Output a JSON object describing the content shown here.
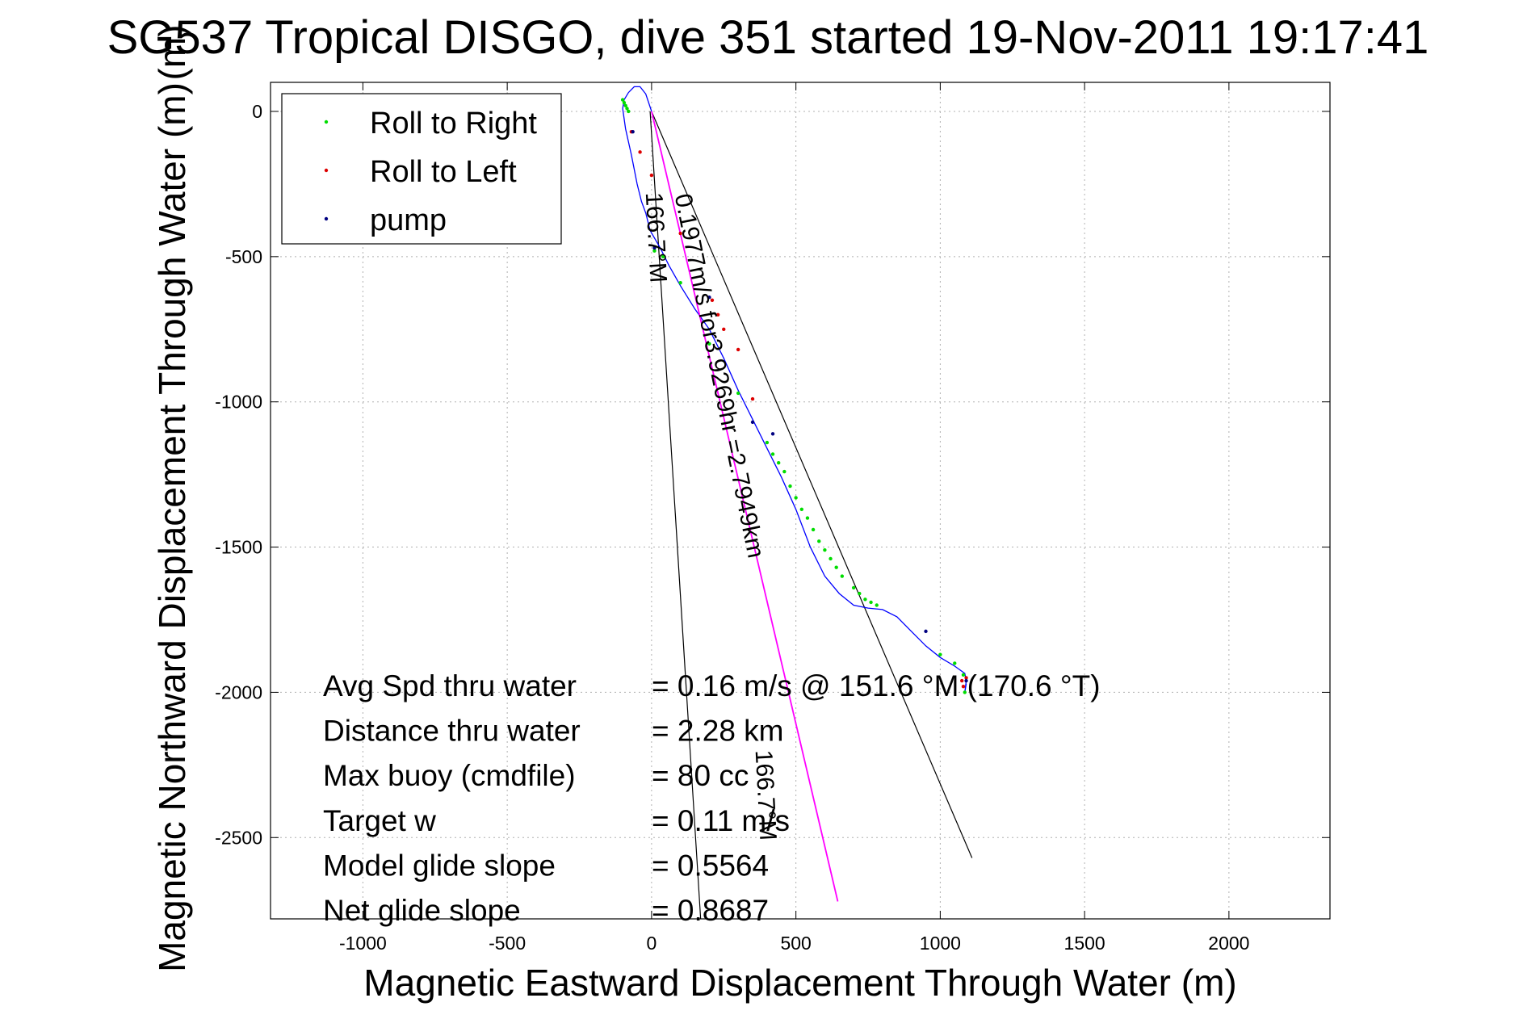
{
  "chart_data": {
    "type": "line",
    "title": "SG537 Tropical DISGO, dive 351 started 19-Nov-2011 19:17:41",
    "title_overlay": "(m)",
    "xlabel": "Magnetic Eastward Displacement Through Water (m)",
    "ylabel": "Magnetic Northward Displacement Through Water (m)",
    "xlim": [
      -1320,
      2350
    ],
    "ylim": [
      -2780,
      100
    ],
    "xticks": [
      -1000,
      -500,
      0,
      500,
      1000,
      1500,
      2000
    ],
    "yticks": [
      0,
      -500,
      -1000,
      -1500,
      -2000,
      -2500
    ],
    "xtick_labels": [
      "-1000",
      "-500",
      "0",
      "500",
      "1000",
      "1500",
      "2000"
    ],
    "ytick_labels": [
      "0",
      "-500",
      "-1000",
      "-1500",
      "-2000",
      "-2500"
    ],
    "grid": true,
    "legend": {
      "position": "top-left",
      "entries": [
        {
          "label": "Roll to Right",
          "color": "#00dd00"
        },
        {
          "label": "Roll to Left",
          "color": "#dd0000"
        },
        {
          "label": "pump",
          "color": "#000080"
        }
      ]
    },
    "series": [
      {
        "name": "track",
        "color": "#0000ff",
        "x": [
          0,
          -20,
          -40,
          -60,
          -80,
          -95,
          -100,
          -90,
          -70,
          -50,
          -35,
          -20,
          -5,
          30,
          60,
          100,
          150,
          200,
          250,
          300,
          350,
          400,
          450,
          500,
          550,
          600,
          650,
          700,
          750,
          800,
          850,
          900,
          950,
          1000,
          1050,
          1085,
          1090,
          1085,
          1090
        ],
        "y": [
          0,
          60,
          85,
          85,
          65,
          40,
          10,
          -60,
          -150,
          -250,
          -310,
          -350,
          -410,
          -470,
          -530,
          -600,
          -680,
          -750,
          -850,
          -960,
          -1060,
          -1160,
          -1260,
          -1370,
          -1500,
          -1600,
          -1660,
          -1700,
          -1710,
          -1715,
          -1740,
          -1790,
          -1840,
          -1880,
          -1910,
          -1935,
          -1960,
          -2000,
          -1970
        ]
      },
      {
        "name": "current",
        "color": "#ff00ff",
        "x": [
          0,
          645
        ],
        "y": [
          0,
          -2720
        ]
      }
    ],
    "reference_lines": [
      {
        "x": [
          -5,
          170
        ],
        "y": [
          0,
          -2780
        ]
      },
      {
        "x": [
          0,
          1110
        ],
        "y": [
          0,
          -2570
        ]
      }
    ],
    "markers": {
      "roll_right": {
        "color": "#00dd00",
        "x": [
          -100,
          -95,
          -90,
          -85,
          -80,
          10,
          40,
          100,
          200,
          300,
          400,
          420,
          440,
          460,
          480,
          500,
          520,
          540,
          560,
          580,
          600,
          620,
          640,
          660,
          700,
          720,
          740,
          760,
          780,
          1000,
          1050,
          1080,
          1085
        ],
        "y": [
          40,
          30,
          20,
          10,
          0,
          -480,
          -500,
          -590,
          -800,
          -970,
          -1140,
          -1180,
          -1210,
          -1240,
          -1290,
          -1330,
          -1370,
          -1400,
          -1440,
          -1480,
          -1510,
          -1540,
          -1570,
          -1600,
          -1640,
          -1660,
          -1680,
          -1690,
          -1700,
          -1870,
          -1900,
          -1940,
          -2000
        ]
      },
      "roll_left": {
        "color": "#dd0000",
        "x": [
          -70,
          -40,
          0,
          100,
          210,
          230,
          250,
          300,
          350,
          1075,
          1080,
          1090
        ],
        "y": [
          -70,
          -140,
          -220,
          -420,
          -650,
          -700,
          -750,
          -820,
          -990,
          -1960,
          -1980,
          -1950
        ]
      },
      "pump": {
        "color": "#000080",
        "x": [
          -65,
          10,
          200,
          350,
          420,
          950,
          1090
        ],
        "y": [
          -70,
          -470,
          -640,
          -1070,
          -1110,
          -1790,
          -1960
        ]
      }
    },
    "annotations": [
      {
        "text": "0.1977m/s for3.9269hr =2.7949km",
        "x": 80,
        "y": -290,
        "rotation": 78.5
      },
      {
        "text": "166.7°M",
        "x": -20,
        "y": -280,
        "rotation": 87
      },
      {
        "text": "166.7°M",
        "x": 360,
        "y": -2200,
        "rotation": 87
      }
    ],
    "stats": [
      {
        "label": "Avg Spd thru water",
        "value": "=  0.16 m/s @ 151.6  °M (170.6 °T)"
      },
      {
        "label": "Distance thru water",
        "value": "=  2.28 km"
      },
      {
        "label": "Max buoy (cmdfile)",
        "value": "= 80 cc"
      },
      {
        "label": "Target w",
        "value": "= 0.11 m/s"
      },
      {
        "label": "Model glide slope",
        "value": "= 0.5564"
      },
      {
        "label": "Net glide slope",
        "value": "= 0.8687"
      }
    ]
  }
}
